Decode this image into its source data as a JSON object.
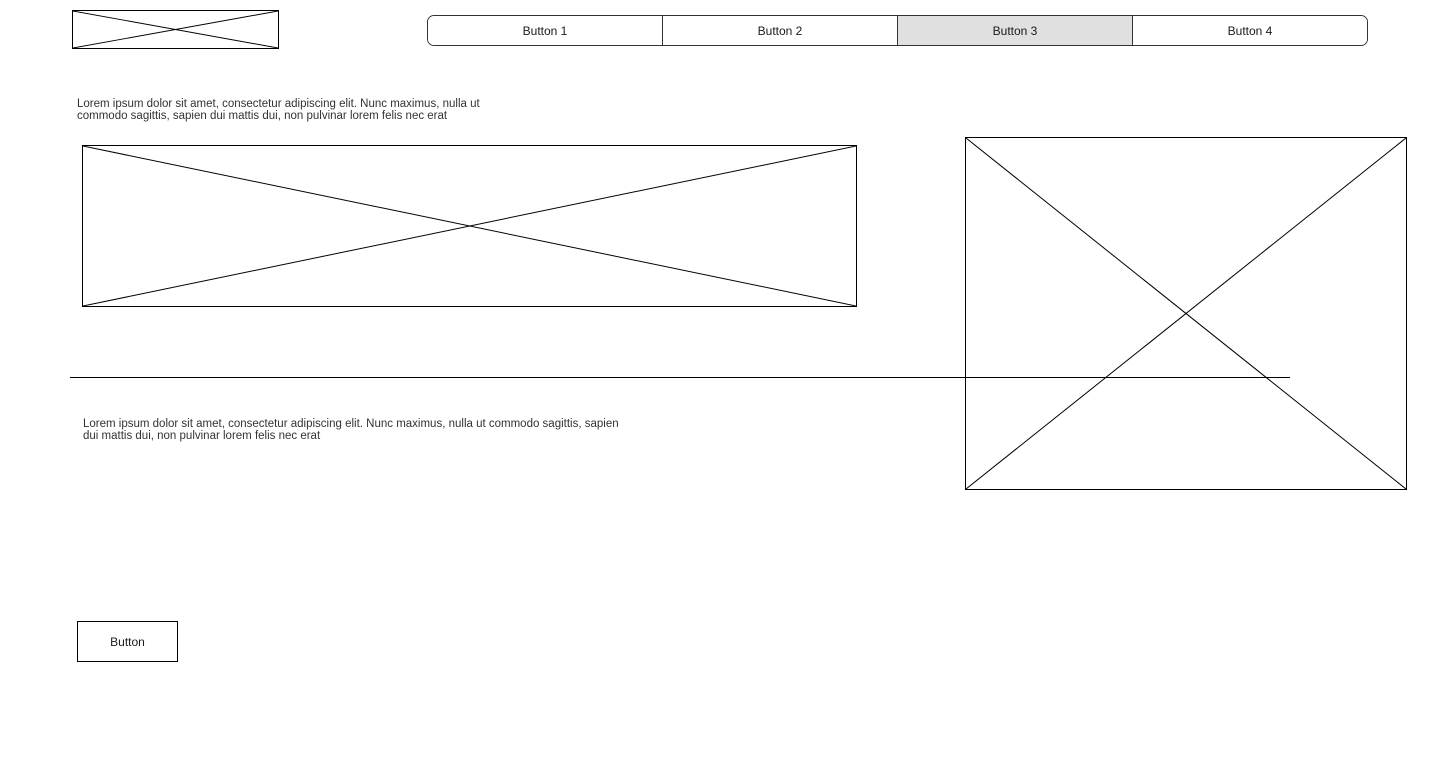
{
  "nav": {
    "buttons": [
      {
        "label": "Button 1"
      },
      {
        "label": "Button 2"
      },
      {
        "label": "Button 3"
      },
      {
        "label": "Button 4"
      }
    ],
    "active_index": 2
  },
  "content": {
    "paragraph_top": "Lorem ipsum dolor sit amet, consectetur adipiscing elit. Nunc maximus, nulla ut commodo sagittis, sapien dui mattis dui, non pulvinar lorem felis nec erat",
    "paragraph_bottom": "Lorem ipsum dolor sit amet, consectetur adipiscing elit. Nunc maximus, nulla ut commodo sagittis, sapien dui mattis dui, non pulvinar lorem felis nec erat",
    "button_label": "Button"
  },
  "colors": {
    "active_nav_background": "#e0e0e0",
    "stroke": "#000000"
  }
}
